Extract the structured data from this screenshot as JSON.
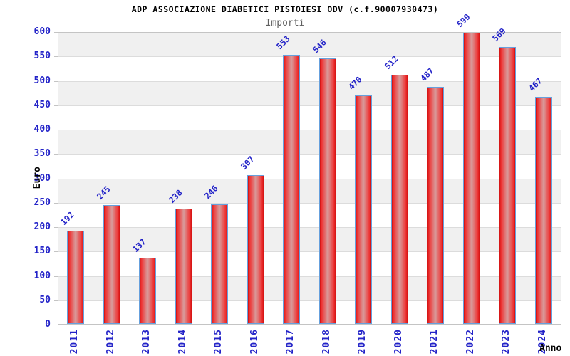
{
  "header": {
    "title": "ADP ASSOCIAZIONE DIABETICI PISTOIESI ODV (c.f.90007930473)",
    "subtitle": "Importi"
  },
  "chart_data": {
    "type": "bar",
    "title": "ADP ASSOCIAZIONE DIABETICI PISTOIESI ODV (c.f.90007930473)",
    "subtitle": "Importi",
    "xlabel": "Anno",
    "ylabel": "Euro",
    "categories": [
      "2011",
      "2012",
      "2013",
      "2014",
      "2015",
      "2016",
      "2017",
      "2018",
      "2019",
      "2020",
      "2021",
      "2022",
      "2023",
      "2024"
    ],
    "values": [
      192,
      245,
      137,
      238,
      246,
      307,
      553,
      546,
      470,
      512,
      487,
      599,
      569,
      467
    ],
    "ylim": [
      0,
      600
    ],
    "ytick_step": 50,
    "yticks": [
      0,
      50,
      100,
      150,
      200,
      250,
      300,
      350,
      400,
      450,
      500,
      550,
      600
    ],
    "grid": "horizontal-bands",
    "legend": "none",
    "colors": {
      "tick_text": "#2323c8",
      "value_label_text": "#2323c8",
      "title_text": "#000000",
      "subtitle_text": "#606060",
      "band_gray": "#f0f0f0",
      "band_white": "#ffffff",
      "grid_line": "#dcdcdc",
      "plot_border": "#c4c4c4",
      "bar_border": "#66a0dd",
      "bar_edge_red": "#d21010",
      "bar_red": "#ee3535",
      "bar_center_light": "#d89c9c"
    }
  }
}
